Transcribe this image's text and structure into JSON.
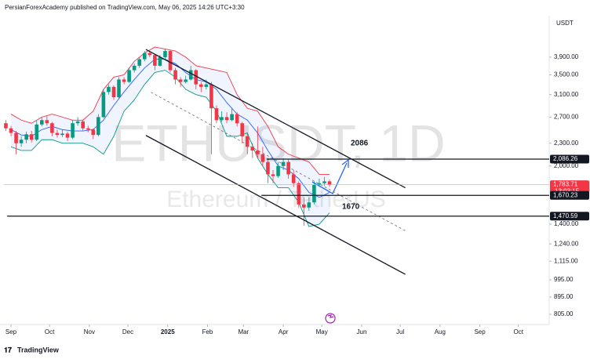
{
  "header": "PersianForexAcademy published on TradingView.com, May 06, 2025 14:26 UTC+3:30",
  "footer": "TradingView",
  "chart_data": {
    "type": "candlestick",
    "symbol": "ETHUSDT, 1D",
    "description": "Ethereum / TetherUS",
    "currency": "USDT",
    "log_scale": true,
    "up_color": "#089981",
    "down_color": "#f23645",
    "xlim": [
      -5.5,
      419
    ],
    "xticks": [
      {
        "value": 0,
        "label": "Sep"
      },
      {
        "value": 30,
        "label": "Oct"
      },
      {
        "value": 61,
        "label": "Nov"
      },
      {
        "value": 91,
        "label": "Dec"
      },
      {
        "value": 122,
        "label": "2025"
      },
      {
        "value": 153,
        "label": "Feb"
      },
      {
        "value": 181,
        "label": "Mar"
      },
      {
        "value": 212,
        "label": "Apr"
      },
      {
        "value": 242,
        "label": "May"
      },
      {
        "value": 273,
        "label": "Jun"
      },
      {
        "value": 303,
        "label": "Jul"
      },
      {
        "value": 334,
        "label": "Aug"
      },
      {
        "value": 365,
        "label": "Sep"
      },
      {
        "value": 395,
        "label": "Oct"
      }
    ],
    "ylim": [
      771,
      5030
    ],
    "yticks": [
      {
        "value": 3900,
        "label": "3,900.00"
      },
      {
        "value": 3500,
        "label": "3,500.00"
      },
      {
        "value": 3100,
        "label": "3,100.00"
      },
      {
        "value": 2700,
        "label": "2,700.00"
      },
      {
        "value": 2300,
        "label": "2,300.00"
      },
      {
        "value": 2000,
        "label": "2,000.00"
      },
      {
        "value": 1400,
        "label": "1,400.00"
      },
      {
        "value": 1240,
        "label": "1,240.00"
      },
      {
        "value": 1115,
        "label": "1,115.00"
      },
      {
        "value": 995,
        "label": "995.00"
      },
      {
        "value": 895,
        "label": "895.00"
      },
      {
        "value": 805,
        "label": "805.00"
      }
    ],
    "candles": [
      [
        -4,
        2600,
        2650,
        2480,
        2520
      ],
      [
        0,
        2520,
        2560,
        2400,
        2450
      ],
      [
        4,
        2450,
        2480,
        2150,
        2300
      ],
      [
        8,
        2300,
        2400,
        2250,
        2350
      ],
      [
        12,
        2350,
        2470,
        2300,
        2430
      ],
      [
        16,
        2430,
        2480,
        2310,
        2350
      ],
      [
        20,
        2350,
        2640,
        2330,
        2580
      ],
      [
        24,
        2580,
        2700,
        2550,
        2650
      ],
      [
        28,
        2650,
        2720,
        2560,
        2600
      ],
      [
        32,
        2600,
        2620,
        2400,
        2450
      ],
      [
        36,
        2450,
        2500,
        2380,
        2420
      ],
      [
        40,
        2420,
        2500,
        2390,
        2440
      ],
      [
        44,
        2440,
        2470,
        2330,
        2380
      ],
      [
        48,
        2380,
        2650,
        2360,
        2600
      ],
      [
        52,
        2600,
        2700,
        2560,
        2630
      ],
      [
        56,
        2630,
        2660,
        2480,
        2520
      ],
      [
        60,
        2520,
        2560,
        2460,
        2500
      ],
      [
        64,
        2500,
        2520,
        2360,
        2420
      ],
      [
        68,
        2420,
        2750,
        2400,
        2700
      ],
      [
        72,
        2700,
        3200,
        2680,
        3150
      ],
      [
        76,
        3150,
        3300,
        3100,
        3250
      ],
      [
        80,
        3250,
        3280,
        3000,
        3050
      ],
      [
        84,
        3050,
        3450,
        3020,
        3400
      ],
      [
        88,
        3400,
        3450,
        3300,
        3350
      ],
      [
        92,
        3350,
        3650,
        3330,
        3600
      ],
      [
        96,
        3600,
        3750,
        3550,
        3700
      ],
      [
        100,
        3700,
        3900,
        3650,
        3850
      ],
      [
        104,
        3850,
        4050,
        3800,
        4000
      ],
      [
        108,
        4000,
        4050,
        3900,
        3950
      ],
      [
        112,
        3950,
        3980,
        3600,
        3700
      ],
      [
        116,
        3700,
        3950,
        3680,
        3900
      ],
      [
        120,
        3900,
        4100,
        3850,
        4050
      ],
      [
        124,
        4050,
        4080,
        3550,
        3600
      ],
      [
        128,
        3600,
        3650,
        3300,
        3400
      ],
      [
        132,
        3400,
        3450,
        3250,
        3350
      ],
      [
        136,
        3350,
        3480,
        3320,
        3400
      ],
      [
        140,
        3400,
        3700,
        3380,
        3600
      ],
      [
        144,
        3600,
        3620,
        3200,
        3300
      ],
      [
        148,
        3300,
        3350,
        3150,
        3250
      ],
      [
        152,
        3250,
        3400,
        3200,
        3300
      ],
      [
        156,
        3300,
        3350,
        2150,
        2850
      ],
      [
        160,
        2850,
        2900,
        2600,
        2650
      ],
      [
        164,
        2650,
        2800,
        2620,
        2700
      ],
      [
        168,
        2700,
        2780,
        2600,
        2650
      ],
      [
        172,
        2650,
        2850,
        2630,
        2750
      ],
      [
        176,
        2750,
        2780,
        2550,
        2600
      ],
      [
        180,
        2600,
        2620,
        2300,
        2400
      ],
      [
        184,
        2400,
        2450,
        2150,
        2250
      ],
      [
        188,
        2250,
        2300,
        2100,
        2200
      ],
      [
        192,
        2200,
        2550,
        2100,
        2150
      ],
      [
        196,
        2150,
        2250,
        2000,
        2050
      ],
      [
        200,
        2050,
        2100,
        1800,
        1900
      ],
      [
        204,
        1900,
        1950,
        1800,
        1880
      ],
      [
        208,
        1880,
        2050,
        1860,
        2000
      ],
      [
        212,
        2000,
        2100,
        1950,
        2050
      ],
      [
        216,
        2050,
        2080,
        1850,
        1900
      ],
      [
        220,
        1900,
        1950,
        1760,
        1800
      ],
      [
        224,
        1800,
        1820,
        1550,
        1580
      ],
      [
        228,
        1580,
        1650,
        1385,
        1550
      ],
      [
        232,
        1550,
        1650,
        1520,
        1600
      ],
      [
        236,
        1600,
        1820,
        1580,
        1780
      ],
      [
        240,
        1780,
        1850,
        1760,
        1800
      ],
      [
        244,
        1800,
        1870,
        1770,
        1820
      ],
      [
        248,
        1820,
        1840,
        1760,
        1784
      ]
    ],
    "bands": {
      "x": [
        0,
        8,
        16,
        24,
        32,
        40,
        48,
        56,
        64,
        72,
        80,
        88,
        96,
        104,
        112,
        120,
        128,
        136,
        144,
        152,
        160,
        168,
        176,
        184,
        192,
        200,
        208,
        216,
        224,
        232,
        240,
        248
      ],
      "series": [
        {
          "color": "#f23645",
          "values": [
            2750,
            2650,
            2600,
            2700,
            2750,
            2700,
            2650,
            2650,
            2800,
            3200,
            3450,
            3500,
            3800,
            4000,
            4150,
            4100,
            4050,
            3900,
            3700,
            3650,
            3600,
            3550,
            3100,
            2850,
            2800,
            2550,
            2250,
            2150,
            2100,
            2050,
            1900,
            1900
          ]
        },
        {
          "color": "#2962ff",
          "values": [
            2500,
            2420,
            2400,
            2500,
            2550,
            2500,
            2480,
            2480,
            2500,
            2650,
            2900,
            3150,
            3400,
            3650,
            3850,
            3850,
            3750,
            3550,
            3400,
            3350,
            3200,
            2950,
            2750,
            2650,
            2450,
            2200,
            2000,
            1950,
            1850,
            1700,
            1650,
            1700
          ]
        },
        {
          "color": "#089981",
          "values": [
            2250,
            2200,
            2200,
            2350,
            2350,
            2300,
            2300,
            2300,
            2250,
            2150,
            2400,
            2800,
            3000,
            3300,
            3550,
            3600,
            3450,
            3200,
            3100,
            3050,
            2800,
            2400,
            2400,
            2450,
            2100,
            1900,
            1750,
            1750,
            1600,
            1380,
            1400,
            1500
          ]
        }
      ]
    },
    "trendlines": [
      {
        "x": [
          105,
          307
        ],
        "y": [
          4090,
          1750
        ],
        "dashed": false
      },
      {
        "x": [
          105,
          307
        ],
        "y": [
          2413,
          1029
        ],
        "dashed": false
      },
      {
        "x": [
          109,
          307
        ],
        "y": [
          3145,
          1344
        ],
        "dashed": true
      }
    ],
    "hlines": [
      {
        "x": 199,
        "y": 2086.26
      },
      {
        "x": 195,
        "y": 1670.23
      },
      {
        "x": -3,
        "y": 1470.59
      }
    ],
    "annotations": [
      "2086",
      "1670"
    ],
    "price_tags": [
      {
        "value": 2086.26,
        "label": "2,086.26",
        "color": "#131722"
      },
      {
        "value": 1783.71,
        "label": "1,783.71",
        "color": "#f23645"
      },
      {
        "value": 1670.23,
        "label": "1,670.23",
        "color": "#131722"
      },
      {
        "value": 1470.59,
        "label": "1,470.59",
        "color": "#131722"
      }
    ],
    "countdown": "13:03:15"
  }
}
